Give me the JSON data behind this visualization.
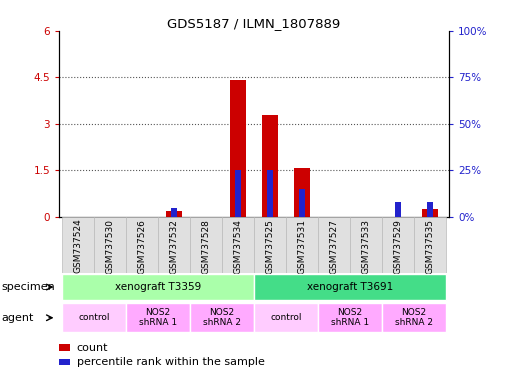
{
  "title": "GDS5187 / ILMN_1807889",
  "samples": [
    "GSM737524",
    "GSM737530",
    "GSM737526",
    "GSM737532",
    "GSM737528",
    "GSM737534",
    "GSM737525",
    "GSM737531",
    "GSM737527",
    "GSM737533",
    "GSM737529",
    "GSM737535"
  ],
  "count_values": [
    0.0,
    0.0,
    0.0,
    0.18,
    0.0,
    4.4,
    3.28,
    1.57,
    0.0,
    0.0,
    0.0,
    0.27
  ],
  "percentile_values": [
    0,
    0,
    0,
    5,
    0,
    25,
    25,
    15,
    0,
    0,
    8,
    8
  ],
  "ylim_left": [
    0,
    6
  ],
  "ylim_right": [
    0,
    100
  ],
  "yticks_left": [
    0,
    1.5,
    3,
    4.5,
    6
  ],
  "yticks_right": [
    0,
    25,
    50,
    75,
    100
  ],
  "ytick_labels_left": [
    "0",
    "1.5",
    "3",
    "4.5",
    "6"
  ],
  "ytick_labels_right": [
    "0%",
    "25%",
    "50%",
    "75%",
    "100%"
  ],
  "bar_color_red": "#cc0000",
  "bar_color_blue": "#2222cc",
  "specimen_groups": [
    {
      "label": "xenograft T3359",
      "start": 0,
      "end": 5,
      "color": "#aaffaa"
    },
    {
      "label": "xenograft T3691",
      "start": 6,
      "end": 11,
      "color": "#44dd88"
    }
  ],
  "agent_groups": [
    {
      "label": "control",
      "start": 0,
      "end": 1,
      "color": "#ffccff"
    },
    {
      "label": "NOS2\nshRNA 1",
      "start": 2,
      "end": 3,
      "color": "#ffaaff"
    },
    {
      "label": "NOS2\nshRNA 2",
      "start": 4,
      "end": 5,
      "color": "#ffaaff"
    },
    {
      "label": "control",
      "start": 6,
      "end": 7,
      "color": "#ffccff"
    },
    {
      "label": "NOS2\nshRNA 1",
      "start": 8,
      "end": 9,
      "color": "#ffaaff"
    },
    {
      "label": "NOS2\nshRNA 2",
      "start": 10,
      "end": 11,
      "color": "#ffaaff"
    }
  ],
  "grid_color": "#888888",
  "bar_width": 0.5,
  "blue_bar_width": 0.18
}
